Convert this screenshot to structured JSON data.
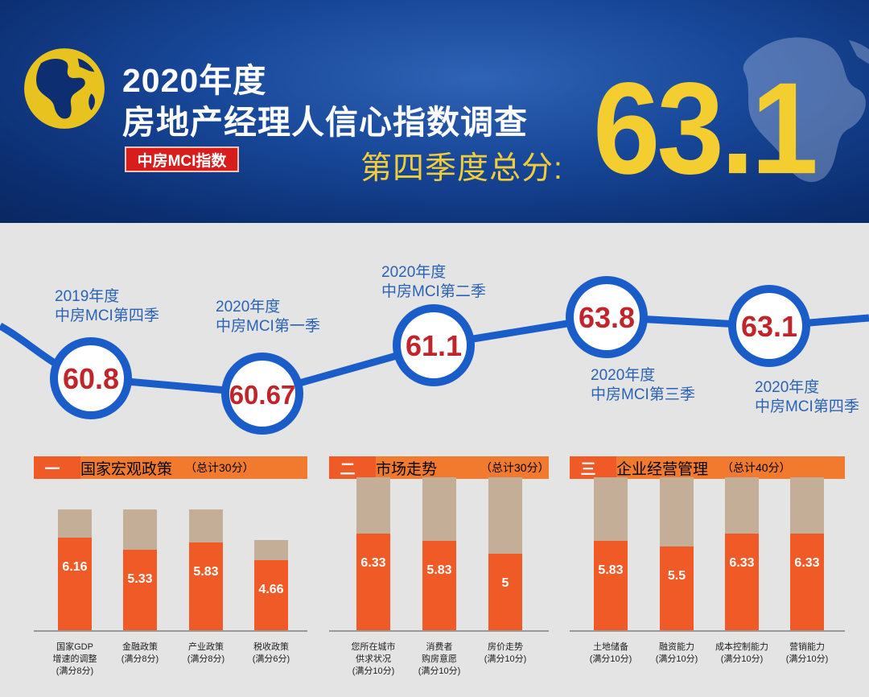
{
  "header": {
    "title_line1": "2020年度",
    "title_line2": "房地产经理人信心指数调查",
    "badge": "中房MCI指数",
    "score_label": "第四季度总分:",
    "score_value": "63.1"
  },
  "colors": {
    "banner_blue": "#18489a",
    "score_yellow": "#f4cd30",
    "accent_orange": "#f05a26",
    "bar_tan": "#c5ae97",
    "trend_blue": "#1a5cc8",
    "value_red": "#c0252b"
  },
  "chart_data": [
    {
      "type": "line",
      "points": [
        {
          "label_line1": "2019年度",
          "label_line2": "中房MCI第四季",
          "value": "60.8"
        },
        {
          "label_line1": "2020年度",
          "label_line2": "中房MCI第一季",
          "value": "60.67"
        },
        {
          "label_line1": "2020年度",
          "label_line2": "中房MCI第二季",
          "value": "61.1"
        },
        {
          "label_line1": "2020年度",
          "label_line2": "中房MCI第三季",
          "value": "63.8"
        },
        {
          "label_line1": "2020年度",
          "label_line2": "中房MCI第四季",
          "value": "63.1"
        }
      ]
    },
    {
      "type": "bar",
      "section_number": "一",
      "title": "国家宏观政策",
      "total": "（总计30分）",
      "bars": [
        {
          "label": [
            "国家GDP",
            "增速的调整",
            "(满分8分)"
          ],
          "value": 6.16,
          "max": 8,
          "display": "6.16"
        },
        {
          "label": [
            "金融政策",
            "(满分8分)"
          ],
          "value": 5.33,
          "max": 8,
          "display": "5.33"
        },
        {
          "label": [
            "产业政策",
            "(满分8分)"
          ],
          "value": 5.83,
          "max": 8,
          "display": "5.83"
        },
        {
          "label": [
            "税收政策",
            "(满分6分)"
          ],
          "value": 4.66,
          "max": 6,
          "display": "4.66"
        }
      ]
    },
    {
      "type": "bar",
      "section_number": "二",
      "title": "市场走势",
      "total": "（总计30分）",
      "bars": [
        {
          "label": [
            "您所在城市",
            "供求状况",
            "(满分10分)"
          ],
          "value": 6.33,
          "max": 10,
          "display": "6.33"
        },
        {
          "label": [
            "消费者",
            "购房意愿",
            "(满分10分)"
          ],
          "value": 5.83,
          "max": 10,
          "display": "5.83"
        },
        {
          "label": [
            "房价走势",
            "(满分10分)"
          ],
          "value": 5,
          "max": 10,
          "display": "5"
        }
      ]
    },
    {
      "type": "bar",
      "section_number": "三",
      "title": "企业经营管理",
      "total": "（总计40分）",
      "bars": [
        {
          "label": [
            "土地储备",
            "(满分10分)"
          ],
          "value": 5.83,
          "max": 10,
          "display": "5.83"
        },
        {
          "label": [
            "融资能力",
            "(满分10分)"
          ],
          "value": 5.5,
          "max": 10,
          "display": "5.5"
        },
        {
          "label": [
            "成本控制能力",
            "(满分10分)"
          ],
          "value": 6.33,
          "max": 10,
          "display": "6.33"
        },
        {
          "label": [
            "营销能力",
            "(满分10分)"
          ],
          "value": 6.33,
          "max": 10,
          "display": "6.33"
        }
      ]
    }
  ]
}
